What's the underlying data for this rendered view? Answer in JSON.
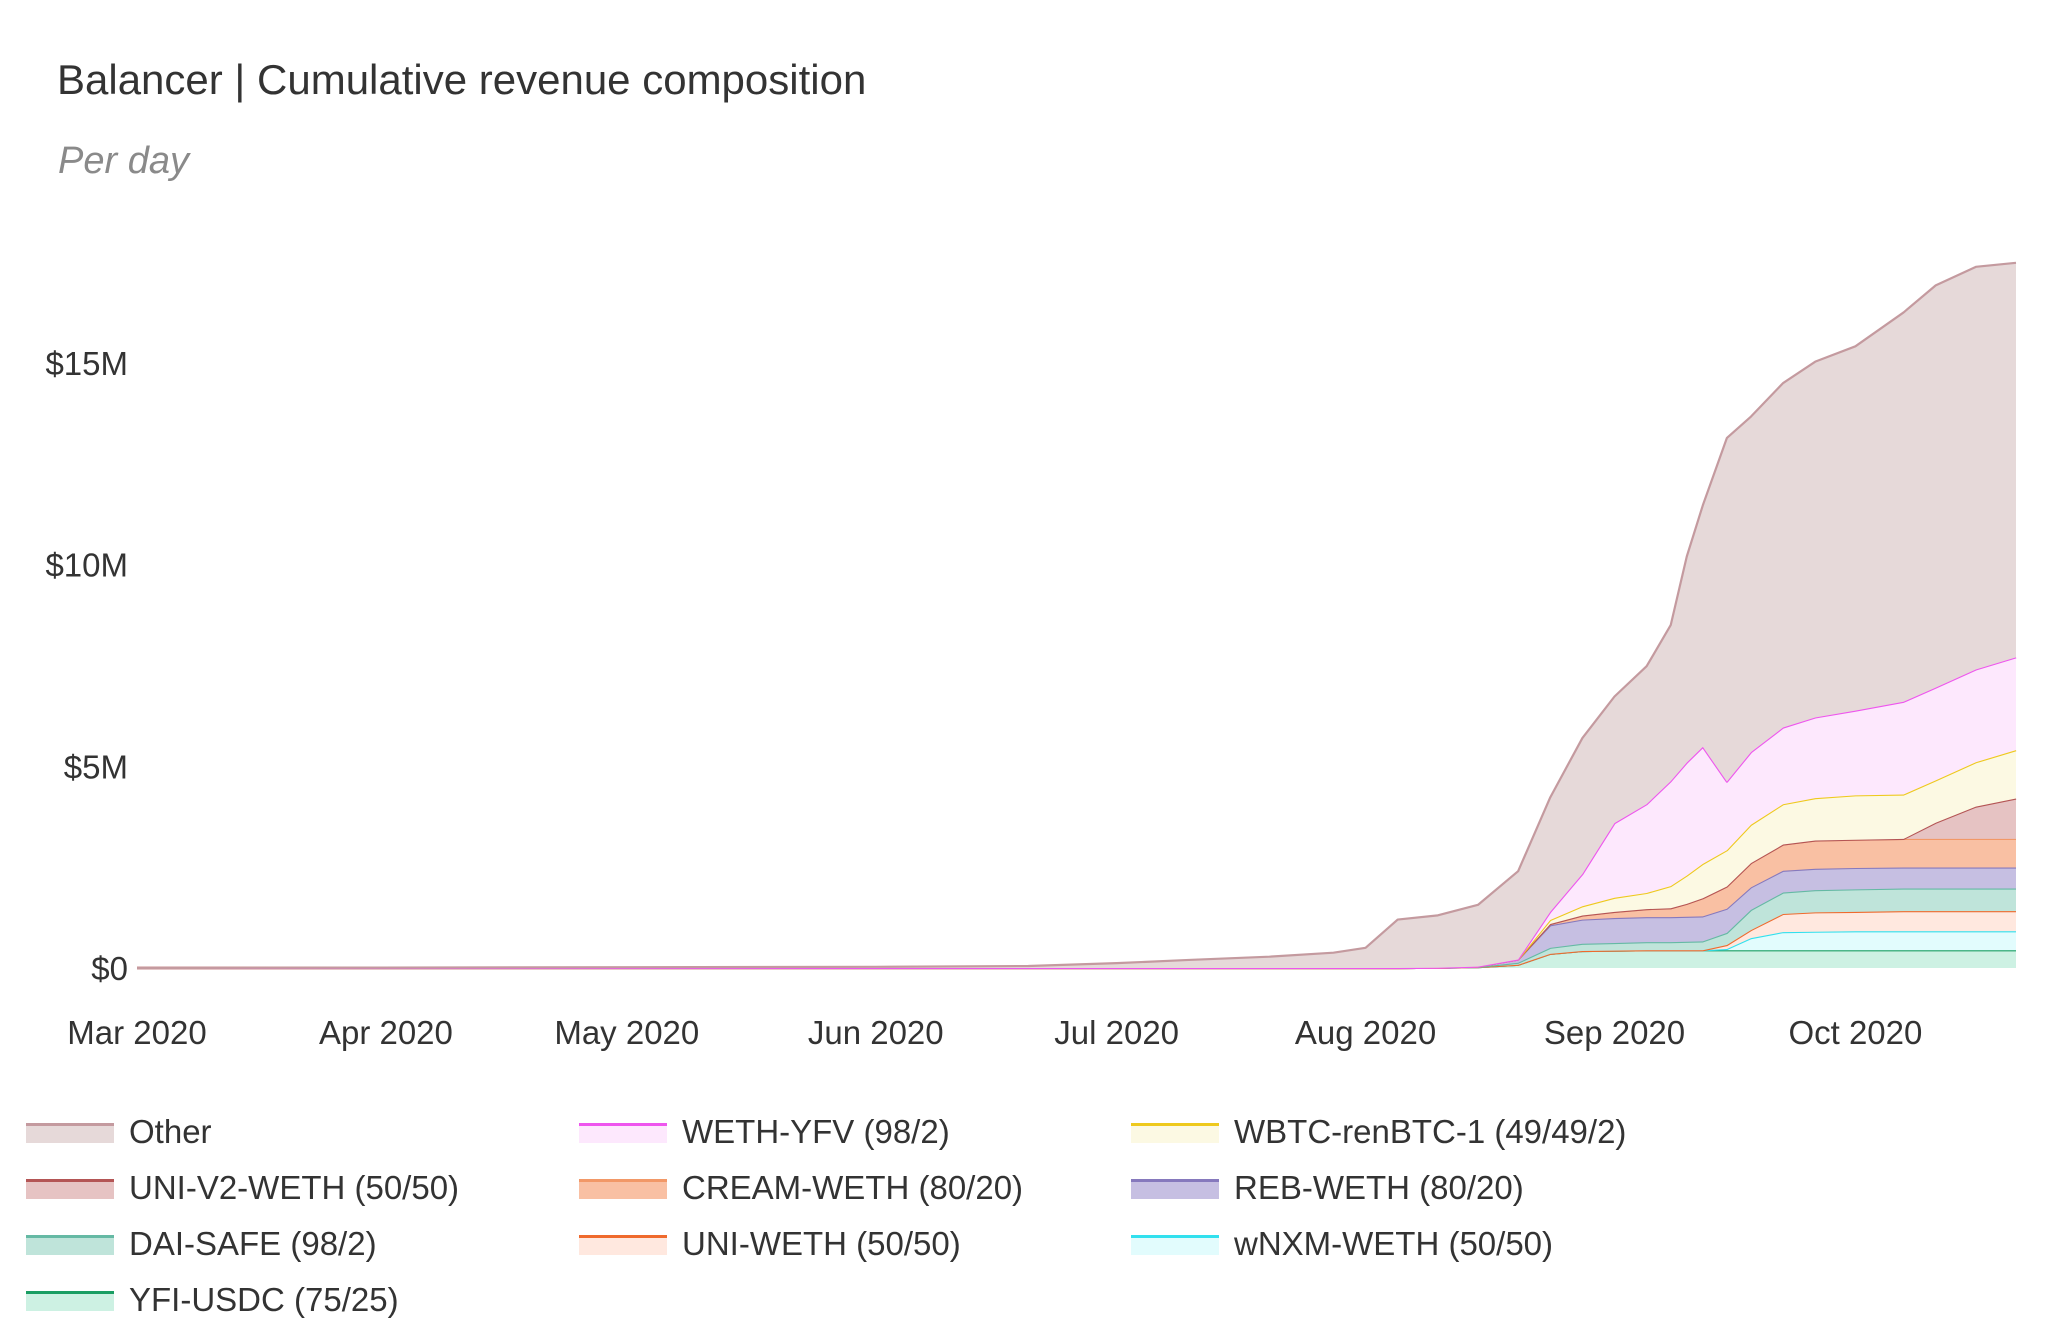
{
  "title": "Balancer | Cumulative revenue composition",
  "subtitle": "Per day",
  "chart_data": {
    "type": "area",
    "stacked": true,
    "title": "Balancer | Cumulative revenue composition",
    "subtitle": "Per day",
    "xlabel": "",
    "ylabel": "",
    "ylim": [
      0,
      17500000
    ],
    "y_ticks": [
      0,
      5000000,
      10000000,
      15000000
    ],
    "y_tick_labels": [
      "$0",
      "$5M",
      "$10M",
      "$15M"
    ],
    "x_ticks": [
      "2020-03-01",
      "2020-04-01",
      "2020-05-01",
      "2020-06-01",
      "2020-07-01",
      "2020-08-01",
      "2020-09-01",
      "2020-10-01"
    ],
    "x_tick_labels": [
      "Mar 2020",
      "Apr 2020",
      "May 2020",
      "Jun 2020",
      "Jul 2020",
      "Aug 2020",
      "Sep 2020",
      "Oct 2020"
    ],
    "x_range": [
      "2020-03-01",
      "2020-10-21"
    ],
    "x": [
      "2020-03-01",
      "2020-06-01",
      "2020-06-20",
      "2020-07-01",
      "2020-07-10",
      "2020-07-20",
      "2020-07-28",
      "2020-08-01",
      "2020-08-05",
      "2020-08-10",
      "2020-08-15",
      "2020-08-20",
      "2020-08-24",
      "2020-08-28",
      "2020-09-01",
      "2020-09-05",
      "2020-09-08",
      "2020-09-10",
      "2020-09-12",
      "2020-09-15",
      "2020-09-18",
      "2020-09-22",
      "2020-09-26",
      "2020-10-01",
      "2020-10-07",
      "2020-10-11",
      "2020-10-16",
      "2020-10-21"
    ],
    "series": [
      {
        "name": "YFI-USDC (75/25)",
        "line_color": "#1a9e63",
        "fill_color": "#cdf1e3",
        "values": [
          0,
          0,
          0,
          0,
          0,
          0,
          0,
          0,
          0,
          5000,
          20000,
          80000,
          350000,
          420000,
          430000,
          440000,
          440000,
          440000,
          440000,
          440000,
          440000,
          440000,
          440000,
          440000,
          440000,
          440000,
          440000,
          440000
        ]
      },
      {
        "name": "wNXM-WETH (50/50)",
        "line_color": "#31e0ee",
        "fill_color": "#e2fcfd",
        "values": [
          0,
          0,
          0,
          0,
          0,
          0,
          0,
          0,
          0,
          0,
          0,
          0,
          0,
          0,
          0,
          0,
          0,
          0,
          0,
          30000,
          300000,
          450000,
          460000,
          470000,
          470000,
          470000,
          470000,
          470000
        ]
      },
      {
        "name": "UNI-WETH (50/50)",
        "line_color": "#ef6a2d",
        "fill_color": "#ffe8df",
        "values": [
          0,
          0,
          0,
          0,
          0,
          0,
          0,
          0,
          0,
          0,
          0,
          0,
          0,
          0,
          0,
          0,
          0,
          0,
          0,
          100000,
          200000,
          450000,
          480000,
          480000,
          500000,
          500000,
          500000,
          500000
        ]
      },
      {
        "name": "DAI-SAFE (98/2)",
        "line_color": "#65b9a4",
        "fill_color": "#bfe4da",
        "values": [
          0,
          0,
          0,
          0,
          0,
          0,
          0,
          0,
          0,
          0,
          5000,
          50000,
          150000,
          180000,
          190000,
          200000,
          200000,
          210000,
          220000,
          300000,
          500000,
          530000,
          550000,
          560000,
          560000,
          560000,
          560000,
          560000
        ]
      },
      {
        "name": "REB-WETH (80/20)",
        "line_color": "#8679bd",
        "fill_color": "#c6bfe2",
        "values": [
          0,
          0,
          0,
          0,
          0,
          0,
          0,
          0,
          0,
          0,
          10000,
          80000,
          560000,
          600000,
          620000,
          620000,
          620000,
          620000,
          620000,
          600000,
          560000,
          540000,
          530000,
          530000,
          520000,
          520000,
          520000,
          520000
        ]
      },
      {
        "name": "CREAM-WETH (80/20)",
        "line_color": "#f29867",
        "fill_color": "#f9c0a3",
        "values": [
          0,
          0,
          0,
          0,
          0,
          0,
          0,
          0,
          0,
          0,
          0,
          0,
          30000,
          100000,
          150000,
          200000,
          220000,
          320000,
          450000,
          550000,
          600000,
          650000,
          700000,
          700000,
          710000,
          710000,
          710000,
          710000
        ]
      },
      {
        "name": "UNI-V2-WETH (50/50)",
        "line_color": "#b45555",
        "fill_color": "#e6c3c3",
        "values": [
          0,
          0,
          0,
          0,
          0,
          0,
          0,
          0,
          0,
          0,
          0,
          0,
          0,
          0,
          0,
          0,
          0,
          0,
          0,
          0,
          0,
          0,
          0,
          0,
          0,
          400000,
          800000,
          1000000
        ]
      },
      {
        "name": "WBTC-renBTC-1 (49/49/2)",
        "line_color": "#eec91d",
        "fill_color": "#fcf9e3",
        "values": [
          0,
          0,
          0,
          0,
          0,
          0,
          0,
          0,
          0,
          0,
          0,
          0,
          100000,
          230000,
          350000,
          400000,
          550000,
          700000,
          850000,
          900000,
          950000,
          1000000,
          1050000,
          1100000,
          1100000,
          1050000,
          1100000,
          1200000
        ]
      },
      {
        "name": "WETH-YFV (98/2)",
        "line_color": "#ee55ee",
        "fill_color": "#fde8fd",
        "values": [
          0,
          0,
          0,
          0,
          0,
          0,
          0,
          0,
          0,
          0,
          0,
          0,
          200000,
          800000,
          1850000,
          2200000,
          2600000,
          2800000,
          2900000,
          1700000,
          1800000,
          1900000,
          2000000,
          2100000,
          2300000,
          2300000,
          2300000,
          2300000
        ]
      },
      {
        "name": "Other",
        "line_color": "#c49a9f",
        "fill_color": "#e6d9d9",
        "values": [
          0,
          30000,
          50000,
          120000,
          200000,
          280000,
          380000,
          500000,
          1200000,
          1300000,
          1530000,
          2190000,
          2840000,
          3370000,
          3140000,
          3420000,
          3870000,
          5110000,
          5990000,
          8520000,
          8320000,
          8540000,
          8820000,
          9030000,
          9650000,
          9970000,
          9980000,
          9780000
        ]
      }
    ]
  },
  "legend": [
    {
      "label": "Other"
    },
    {
      "label": "WETH-YFV (98/2)"
    },
    {
      "label": "WBTC-renBTC-1 (49/49/2)"
    },
    {
      "label": "UNI-V2-WETH (50/50)"
    },
    {
      "label": "CREAM-WETH (80/20)"
    },
    {
      "label": "REB-WETH (80/20)"
    },
    {
      "label": "DAI-SAFE (98/2)"
    },
    {
      "label": "UNI-WETH (50/50)"
    },
    {
      "label": "wNXM-WETH (50/50)"
    },
    {
      "label": "YFI-USDC (75/25)"
    }
  ]
}
